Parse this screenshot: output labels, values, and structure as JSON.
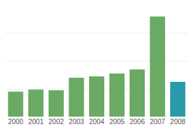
{
  "chart_data": {
    "type": "bar",
    "categories": [
      "2000",
      "2001",
      "2002",
      "2003",
      "2004",
      "2005",
      "2006",
      "2007",
      "2008"
    ],
    "values": [
      18,
      19.5,
      19,
      28,
      29,
      31,
      34,
      72,
      25
    ],
    "colors": [
      "#6aaa64",
      "#6aaa64",
      "#6aaa64",
      "#6aaa64",
      "#6aaa64",
      "#6aaa64",
      "#6aaa64",
      "#6aaa64",
      "#2a9aaa"
    ],
    "ylim": [
      0,
      80
    ],
    "yticks": [
      0,
      20,
      40,
      60,
      80
    ],
    "grid": true,
    "tick_labels": "x"
  }
}
